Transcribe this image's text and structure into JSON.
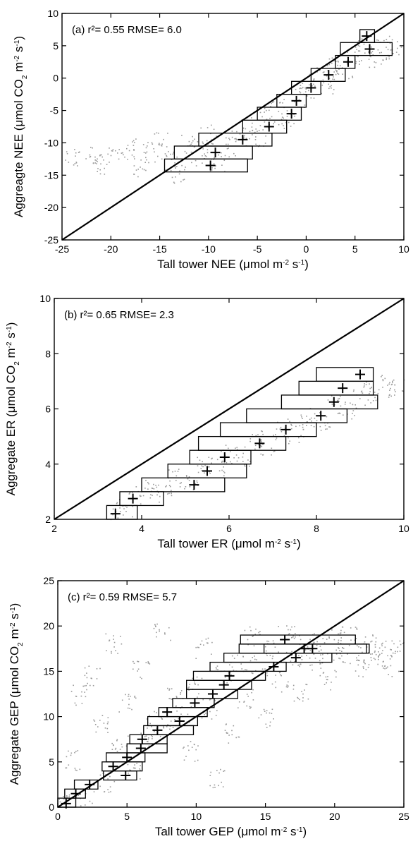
{
  "chart_data": [
    {
      "type": "scatter",
      "panel_label": "(a)",
      "stats": "r²= 0.55 RMSE= 6.0",
      "xlabel": "Tall tower NEE (μmol m⁻² s⁻¹)",
      "ylabel": "Aggreagte NEE (μmol CO₂ m⁻² s⁻¹)",
      "xlim": [
        -25,
        10
      ],
      "ylim": [
        -25,
        10
      ],
      "xticks": [
        -25,
        -20,
        -15,
        -10,
        -5,
        0,
        5,
        10
      ],
      "yticks": [
        -25,
        -20,
        -15,
        -10,
        -5,
        0,
        5,
        10
      ],
      "one_to_one_line": true,
      "bin_boxes": [
        {
          "x0": -14.5,
          "x1": -6.0,
          "y0": -14.5,
          "y1": -12.5,
          "cx": -9.8,
          "cy": -13.5
        },
        {
          "x0": -13.5,
          "x1": -5.5,
          "y0": -12.5,
          "y1": -10.5,
          "cx": -9.3,
          "cy": -11.5
        },
        {
          "x0": -11.0,
          "x1": -3.5,
          "y0": -10.5,
          "y1": -8.5,
          "cx": -6.5,
          "cy": -9.5
        },
        {
          "x0": -6.5,
          "x1": -2.0,
          "y0": -8.5,
          "y1": -6.5,
          "cx": -3.8,
          "cy": -7.5
        },
        {
          "x0": -5.0,
          "x1": -0.5,
          "y0": -6.5,
          "y1": -4.5,
          "cx": -1.5,
          "cy": -5.5
        },
        {
          "x0": -3.0,
          "x1": 0.0,
          "y0": -4.5,
          "y1": -2.5,
          "cx": -1.0,
          "cy": -3.5
        },
        {
          "x0": -1.5,
          "x1": 1.5,
          "y0": -2.5,
          "y1": -0.5,
          "cx": 0.5,
          "cy": -1.5
        },
        {
          "x0": 0.5,
          "x1": 4.0,
          "y0": -0.5,
          "y1": 1.5,
          "cx": 2.3,
          "cy": 0.5
        },
        {
          "x0": 3.0,
          "x1": 5.0,
          "y0": 1.5,
          "y1": 3.5,
          "cx": 4.3,
          "cy": 2.5
        },
        {
          "x0": 3.5,
          "x1": 8.8,
          "y0": 3.5,
          "y1": 5.5,
          "cx": 6.5,
          "cy": 4.5
        },
        {
          "x0": 5.5,
          "x1": 7.0,
          "y0": 5.5,
          "y1": 7.5,
          "cx": 6.2,
          "cy": 6.5
        }
      ],
      "scatter_cloud": [
        {
          "x": -24,
          "y": -12.5
        },
        {
          "x": -22,
          "y": -11.8
        },
        {
          "x": -21,
          "y": -13.2
        },
        {
          "x": -19.5,
          "y": -12.1
        },
        {
          "x": -18,
          "y": -10.9
        },
        {
          "x": -17,
          "y": -13.6
        },
        {
          "x": -16,
          "y": -11.4
        },
        {
          "x": -15,
          "y": -9.8
        },
        {
          "x": -14,
          "y": -12.9
        },
        {
          "x": -13,
          "y": -14.7
        },
        {
          "x": -12,
          "y": -10.3
        },
        {
          "x": -11,
          "y": -11.9
        },
        {
          "x": -10,
          "y": -8.7
        },
        {
          "x": -9,
          "y": -13.1
        },
        {
          "x": -8,
          "y": -10.6
        },
        {
          "x": -7,
          "y": -9.2
        },
        {
          "x": -6,
          "y": -7.4
        },
        {
          "x": -5,
          "y": -8.9
        },
        {
          "x": -4,
          "y": -6.1
        },
        {
          "x": -3,
          "y": -4.8
        },
        {
          "x": -2,
          "y": -6.5
        },
        {
          "x": -1,
          "y": -2.9
        },
        {
          "x": 0,
          "y": -1.6
        },
        {
          "x": 1,
          "y": 0.2
        },
        {
          "x": 2,
          "y": -0.8
        },
        {
          "x": 3,
          "y": 2.1
        },
        {
          "x": 4,
          "y": 1.4
        },
        {
          "x": 5,
          "y": 3.8
        },
        {
          "x": 6,
          "y": 4.9
        },
        {
          "x": 7,
          "y": 3.2
        },
        {
          "x": 8,
          "y": 5.1
        },
        {
          "x": 9,
          "y": 4.4
        }
      ]
    },
    {
      "type": "scatter",
      "panel_label": "(b)",
      "stats": "r²= 0.65 RMSE= 2.3",
      "xlabel": "Tall tower ER (μmol m⁻² s⁻¹)",
      "ylabel": "Aggregate ER (μmol CO₂ m⁻² s⁻¹)",
      "xlim": [
        2,
        10
      ],
      "ylim": [
        2,
        10
      ],
      "xticks": [
        2,
        4,
        6,
        8,
        10
      ],
      "yticks": [
        2,
        4,
        6,
        8,
        10
      ],
      "one_to_one_line": true,
      "bin_boxes": [
        {
          "x0": 3.2,
          "x1": 3.9,
          "y0": 2.0,
          "y1": 2.5,
          "cx": 3.4,
          "cy": 2.2
        },
        {
          "x0": 3.5,
          "x1": 4.5,
          "y0": 2.5,
          "y1": 3.0,
          "cx": 3.8,
          "cy": 2.75
        },
        {
          "x0": 4.0,
          "x1": 5.9,
          "y0": 3.0,
          "y1": 3.5,
          "cx": 5.2,
          "cy": 3.25
        },
        {
          "x0": 4.6,
          "x1": 6.4,
          "y0": 3.5,
          "y1": 4.0,
          "cx": 5.5,
          "cy": 3.75
        },
        {
          "x0": 5.1,
          "x1": 6.5,
          "y0": 4.0,
          "y1": 4.5,
          "cx": 5.9,
          "cy": 4.25
        },
        {
          "x0": 5.3,
          "x1": 7.3,
          "y0": 4.5,
          "y1": 5.0,
          "cx": 6.7,
          "cy": 4.75
        },
        {
          "x0": 5.8,
          "x1": 8.0,
          "y0": 5.0,
          "y1": 5.5,
          "cx": 7.3,
          "cy": 5.25
        },
        {
          "x0": 6.4,
          "x1": 8.7,
          "y0": 5.5,
          "y1": 6.0,
          "cx": 8.1,
          "cy": 5.75
        },
        {
          "x0": 7.2,
          "x1": 9.4,
          "y0": 6.0,
          "y1": 6.5,
          "cx": 8.4,
          "cy": 6.25
        },
        {
          "x0": 7.6,
          "x1": 9.3,
          "y0": 6.5,
          "y1": 7.0,
          "cx": 8.6,
          "cy": 6.75
        },
        {
          "x0": 8.0,
          "x1": 9.3,
          "y0": 7.0,
          "y1": 7.5,
          "cx": 9.0,
          "cy": 7.25
        }
      ],
      "scatter_cloud": [
        {
          "x": 3.3,
          "y": 2.1
        },
        {
          "x": 3.6,
          "y": 2.4
        },
        {
          "x": 3.9,
          "y": 2.9
        },
        {
          "x": 4.2,
          "y": 3.1
        },
        {
          "x": 4.5,
          "y": 3.0
        },
        {
          "x": 4.8,
          "y": 3.5
        },
        {
          "x": 5.1,
          "y": 3.4
        },
        {
          "x": 5.4,
          "y": 4.0
        },
        {
          "x": 5.7,
          "y": 3.9
        },
        {
          "x": 6.0,
          "y": 4.4
        },
        {
          "x": 6.3,
          "y": 4.3
        },
        {
          "x": 6.6,
          "y": 4.9
        },
        {
          "x": 6.9,
          "y": 4.7
        },
        {
          "x": 7.2,
          "y": 5.3
        },
        {
          "x": 7.5,
          "y": 5.1
        },
        {
          "x": 7.8,
          "y": 5.7
        },
        {
          "x": 8.1,
          "y": 5.6
        },
        {
          "x": 8.4,
          "y": 6.2
        },
        {
          "x": 8.7,
          "y": 6.0
        },
        {
          "x": 9.0,
          "y": 6.7
        },
        {
          "x": 9.3,
          "y": 6.5
        },
        {
          "x": 9.6,
          "y": 7.0
        },
        {
          "x": 9.8,
          "y": 6.8
        }
      ]
    },
    {
      "type": "scatter",
      "panel_label": "(c)",
      "stats": "r²= 0.59 RMSE= 5.7",
      "xlabel": "Tall tower GEP (μmol m⁻² s⁻¹)",
      "ylabel": "Aggregate GEP (μmol CO₂ m⁻² s⁻¹)",
      "xlim": [
        0,
        25
      ],
      "ylim": [
        0,
        25
      ],
      "xticks": [
        0,
        5,
        10,
        15,
        20,
        25
      ],
      "yticks": [
        0,
        5,
        10,
        15,
        20,
        25
      ],
      "one_to_one_line": true,
      "bin_boxes": [
        {
          "x0": 0.0,
          "x1": 1.3,
          "y0": 0.0,
          "y1": 1.0,
          "cx": 0.6,
          "cy": 0.4
        },
        {
          "x0": 0.5,
          "x1": 2.0,
          "y0": 1.0,
          "y1": 2.0,
          "cx": 1.3,
          "cy": 1.5
        },
        {
          "x0": 1.2,
          "x1": 2.9,
          "y0": 2.0,
          "y1": 3.0,
          "cx": 2.3,
          "cy": 2.5
        },
        {
          "x0": 3.3,
          "x1": 5.7,
          "y0": 3.0,
          "y1": 4.0,
          "cx": 4.9,
          "cy": 3.5
        },
        {
          "x0": 3.2,
          "x1": 6.1,
          "y0": 4.0,
          "y1": 5.0,
          "cx": 4.0,
          "cy": 4.5
        },
        {
          "x0": 3.5,
          "x1": 6.3,
          "y0": 5.0,
          "y1": 6.0,
          "cx": 5.0,
          "cy": 5.5
        },
        {
          "x0": 5.0,
          "x1": 7.9,
          "y0": 6.0,
          "y1": 7.0,
          "cx": 6.0,
          "cy": 6.5
        },
        {
          "x0": 5.2,
          "x1": 7.9,
          "y0": 7.0,
          "y1": 8.0,
          "cx": 6.1,
          "cy": 7.5
        },
        {
          "x0": 6.2,
          "x1": 9.8,
          "y0": 8.0,
          "y1": 9.0,
          "cx": 7.2,
          "cy": 8.5
        },
        {
          "x0": 6.5,
          "x1": 10.1,
          "y0": 9.0,
          "y1": 10.0,
          "cx": 8.8,
          "cy": 9.5
        },
        {
          "x0": 7.3,
          "x1": 10.8,
          "y0": 10.0,
          "y1": 11.0,
          "cx": 7.9,
          "cy": 10.5
        },
        {
          "x0": 8.3,
          "x1": 11.3,
          "y0": 11.0,
          "y1": 12.0,
          "cx": 9.9,
          "cy": 11.5
        },
        {
          "x0": 9.3,
          "x1": 13.0,
          "y0": 12.0,
          "y1": 13.0,
          "cx": 11.2,
          "cy": 12.5
        },
        {
          "x0": 9.3,
          "x1": 14.0,
          "y0": 13.0,
          "y1": 14.0,
          "cx": 12.0,
          "cy": 13.5
        },
        {
          "x0": 9.8,
          "x1": 15.0,
          "y0": 14.0,
          "y1": 15.0,
          "cx": 12.4,
          "cy": 14.5
        },
        {
          "x0": 11.0,
          "x1": 16.5,
          "y0": 15.0,
          "y1": 16.0,
          "cx": 15.6,
          "cy": 15.5
        },
        {
          "x0": 12.0,
          "x1": 19.8,
          "y0": 16.0,
          "y1": 17.0,
          "cx": 17.2,
          "cy": 16.5
        },
        {
          "x0": 13.1,
          "x1": 22.3,
          "y0": 17.0,
          "y1": 18.0,
          "cx": 17.8,
          "cy": 17.5
        },
        {
          "x0": 14.9,
          "x1": 22.5,
          "y0": 17.0,
          "y1": 18.0,
          "cx": 18.4,
          "cy": 17.5
        },
        {
          "x0": 13.2,
          "x1": 21.5,
          "y0": 18.0,
          "y1": 19.0,
          "cx": 16.4,
          "cy": 18.5
        }
      ],
      "scatter_cloud": [
        {
          "x": 0.3,
          "y": 1.5
        },
        {
          "x": 1.0,
          "y": 5.2
        },
        {
          "x": 1.5,
          "y": 12.4
        },
        {
          "x": 2.0,
          "y": 0.8
        },
        {
          "x": 2.5,
          "y": 14.6
        },
        {
          "x": 3.0,
          "y": 9.2
        },
        {
          "x": 3.5,
          "y": 2.8
        },
        {
          "x": 4.0,
          "y": 18.1
        },
        {
          "x": 4.5,
          "y": 6.9
        },
        {
          "x": 5.0,
          "y": 11.5
        },
        {
          "x": 5.5,
          "y": 4.2
        },
        {
          "x": 6.0,
          "y": 15.3
        },
        {
          "x": 6.5,
          "y": 7.9
        },
        {
          "x": 7.0,
          "y": 9.5
        },
        {
          "x": 7.5,
          "y": 19.4
        },
        {
          "x": 8.0,
          "y": 8.7
        },
        {
          "x": 8.5,
          "y": 12.9
        },
        {
          "x": 9.0,
          "y": 10.4
        },
        {
          "x": 9.5,
          "y": 6.2
        },
        {
          "x": 10.0,
          "y": 13.3
        },
        {
          "x": 10.5,
          "y": 17.6
        },
        {
          "x": 11.0,
          "y": 10.9
        },
        {
          "x": 11.5,
          "y": 3.1
        },
        {
          "x": 12.0,
          "y": 14.8
        },
        {
          "x": 12.5,
          "y": 8.2
        },
        {
          "x": 13.0,
          "y": 16.1
        },
        {
          "x": 13.5,
          "y": 12.0
        },
        {
          "x": 14.0,
          "y": 18.9
        },
        {
          "x": 14.5,
          "y": 15.7
        },
        {
          "x": 15.0,
          "y": 9.8
        },
        {
          "x": 15.5,
          "y": 17.3
        },
        {
          "x": 16.0,
          "y": 13.9
        },
        {
          "x": 16.5,
          "y": 19.2
        },
        {
          "x": 17.0,
          "y": 16.6
        },
        {
          "x": 17.5,
          "y": 12.7
        },
        {
          "x": 18.0,
          "y": 18.3
        },
        {
          "x": 18.5,
          "y": 15.9
        },
        {
          "x": 19.0,
          "y": 17.8
        },
        {
          "x": 19.5,
          "y": 14.1
        },
        {
          "x": 20.0,
          "y": 18.6
        },
        {
          "x": 20.5,
          "y": 16.8
        },
        {
          "x": 21.0,
          "y": 19.0
        },
        {
          "x": 21.5,
          "y": 17.1
        },
        {
          "x": 22.0,
          "y": 15.2
        },
        {
          "x": 22.5,
          "y": 18.0
        },
        {
          "x": 23.0,
          "y": 16.4
        },
        {
          "x": 23.5,
          "y": 17.9
        },
        {
          "x": 24.0,
          "y": 15.6
        },
        {
          "x": 24.5,
          "y": 17.3
        }
      ]
    }
  ]
}
